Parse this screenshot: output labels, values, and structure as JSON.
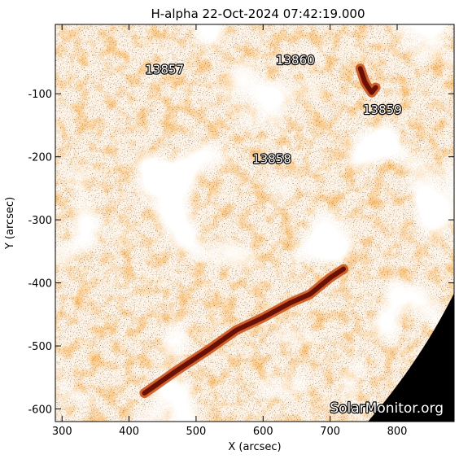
{
  "chart_data": {
    "type": "heatmap",
    "title": "H-alpha 22-Oct-2024 07:42:19.000",
    "xlabel": "X (arcsec)",
    "ylabel": "Y (arcsec)",
    "xlim": [
      290,
      885
    ],
    "ylim": [
      -620,
      10
    ],
    "x_ticks": [
      300,
      400,
      500,
      600,
      700,
      800
    ],
    "y_ticks": [
      -600,
      -500,
      -400,
      -300,
      -200,
      -100
    ],
    "x_tick_labels": [
      "300",
      "400",
      "500",
      "600",
      "700",
      "800"
    ],
    "y_tick_labels": [
      "-600",
      "-500",
      "-400",
      "-300",
      "-200",
      "-100"
    ],
    "regions": [
      {
        "label": "13857",
        "x": 453,
        "y": -68
      },
      {
        "label": "13860",
        "x": 648,
        "y": -53
      },
      {
        "label": "13859",
        "x": 778,
        "y": -132
      },
      {
        "label": "13858",
        "x": 613,
        "y": -210
      }
    ],
    "filaments": [
      [
        [
          423,
          -575
        ],
        [
          470,
          -540
        ],
        [
          520,
          -505
        ],
        [
          560,
          -475
        ],
        [
          600,
          -455
        ],
        [
          640,
          -432
        ],
        [
          670,
          -418
        ],
        [
          700,
          -392
        ],
        [
          720,
          -378
        ]
      ],
      [
        [
          745,
          -60
        ],
        [
          752,
          -82
        ],
        [
          762,
          -98
        ],
        [
          768,
          -90
        ]
      ]
    ],
    "limb_circle": {
      "cx": 0,
      "cy": 0,
      "r": 978
    },
    "grid": false,
    "colormap": [
      "#fff5e6",
      "#ff9a3c",
      "#ff7a1a",
      "#c84a10",
      "#6b1004",
      "#000000"
    ]
  },
  "watermark": "SolarMonitor.org"
}
